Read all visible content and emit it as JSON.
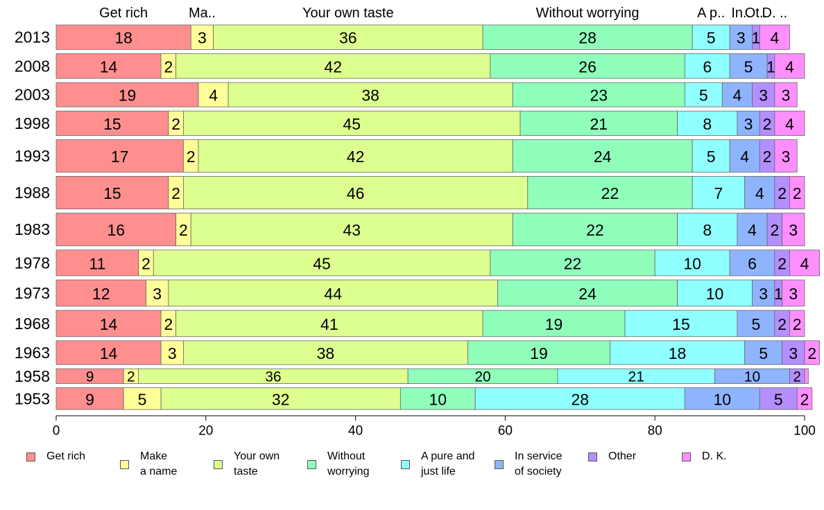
{
  "chart_data": {
    "type": "bar",
    "orientation": "horizontal",
    "stacked": true,
    "categories": [
      "2013",
      "2008",
      "2003",
      "1998",
      "1993",
      "1988",
      "1983",
      "1978",
      "1973",
      "1968",
      "1963",
      "1958",
      "1953"
    ],
    "row_weights": [
      0.99,
      1.0,
      0.98,
      0.99,
      1.31,
      1.32,
      1.32,
      1.04,
      1.06,
      1.06,
      0.96,
      0.6,
      0.88
    ],
    "series": [
      {
        "name": "Get rich",
        "legend_label": "Get rich",
        "header_label": "Get rich",
        "color": "#FF8F8F",
        "values": [
          18,
          14,
          19,
          15,
          17,
          15,
          16,
          11,
          12,
          14,
          14,
          9,
          9
        ]
      },
      {
        "name": "Make a name",
        "legend_label": "Make\na name",
        "header_label": "Ma..",
        "color": "#FFFF99",
        "values": [
          3,
          2,
          4,
          2,
          2,
          2,
          2,
          2,
          3,
          2,
          3,
          2,
          5
        ]
      },
      {
        "name": "Your own taste",
        "legend_label": "Your own\ntaste",
        "header_label": "Your own taste",
        "color": "#DDFF8F",
        "values": [
          36,
          42,
          38,
          45,
          42,
          46,
          43,
          45,
          44,
          41,
          38,
          36,
          32
        ]
      },
      {
        "name": "Without worrying",
        "legend_label": "Without\nworrying",
        "header_label": "Without worrying",
        "color": "#8FFFBB",
        "values": [
          28,
          26,
          23,
          21,
          24,
          22,
          22,
          22,
          24,
          19,
          19,
          20,
          10
        ]
      },
      {
        "name": "A pure and just life",
        "legend_label": "A pure and\njust life",
        "header_label": "A p..",
        "color": "#8FFFFF",
        "values": [
          5,
          6,
          5,
          8,
          5,
          7,
          8,
          10,
          10,
          15,
          18,
          21,
          28
        ]
      },
      {
        "name": "In service of society",
        "legend_label": "In service\nof society",
        "header_label": "In..",
        "color": "#8FB4FF",
        "values": [
          3,
          5,
          4,
          3,
          4,
          4,
          4,
          6,
          3,
          5,
          5,
          10,
          10
        ]
      },
      {
        "name": "Other",
        "legend_label": "Other",
        "header_label": "Ot..",
        "color": "#B48FFF",
        "values": [
          1,
          1,
          3,
          2,
          2,
          2,
          2,
          2,
          1,
          2,
          3,
          2,
          5
        ]
      },
      {
        "name": "D. K.",
        "legend_label": "D. K.",
        "header_label": "D. ..",
        "color": "#FF8FFF",
        "values": [
          4,
          4,
          3,
          4,
          3,
          2,
          3,
          4,
          3,
          2,
          2,
          0.5,
          2
        ]
      }
    ],
    "value_labels": [
      [
        "18",
        "3",
        "36",
        "28",
        "5",
        "3",
        "1",
        "4"
      ],
      [
        "14",
        "2",
        "42",
        "26",
        "6",
        "5",
        "1",
        "4"
      ],
      [
        "19",
        "4",
        "38",
        "23",
        "5",
        "4",
        "3",
        "3"
      ],
      [
        "15",
        "2",
        "45",
        "21",
        "8",
        "3",
        "2",
        "4"
      ],
      [
        "17",
        "2",
        "42",
        "24",
        "5",
        "4",
        "2",
        "3"
      ],
      [
        "15",
        "2",
        "46",
        "22",
        "7",
        "4",
        "2",
        "2"
      ],
      [
        "16",
        "2",
        "43",
        "22",
        "8",
        "4",
        "2",
        "3"
      ],
      [
        "11",
        "2",
        "45",
        "22",
        "10",
        "6",
        "2",
        "4"
      ],
      [
        "12",
        "3",
        "44",
        "24",
        "10",
        "3",
        "1",
        "3"
      ],
      [
        "14",
        "2",
        "41",
        "19",
        "15",
        "5",
        "2",
        "2"
      ],
      [
        "14",
        "3",
        "38",
        "19",
        "18",
        "5",
        "3",
        "2"
      ],
      [
        "9",
        "2",
        "36",
        "20",
        "21",
        "10",
        "2",
        ""
      ],
      [
        "9",
        "5",
        "32",
        "10",
        "28",
        "10",
        "5",
        "2"
      ]
    ],
    "xlim": [
      0,
      100
    ],
    "xticks": [
      0,
      20,
      40,
      60,
      80,
      100
    ],
    "grid": false,
    "legend_position": "bottom"
  }
}
